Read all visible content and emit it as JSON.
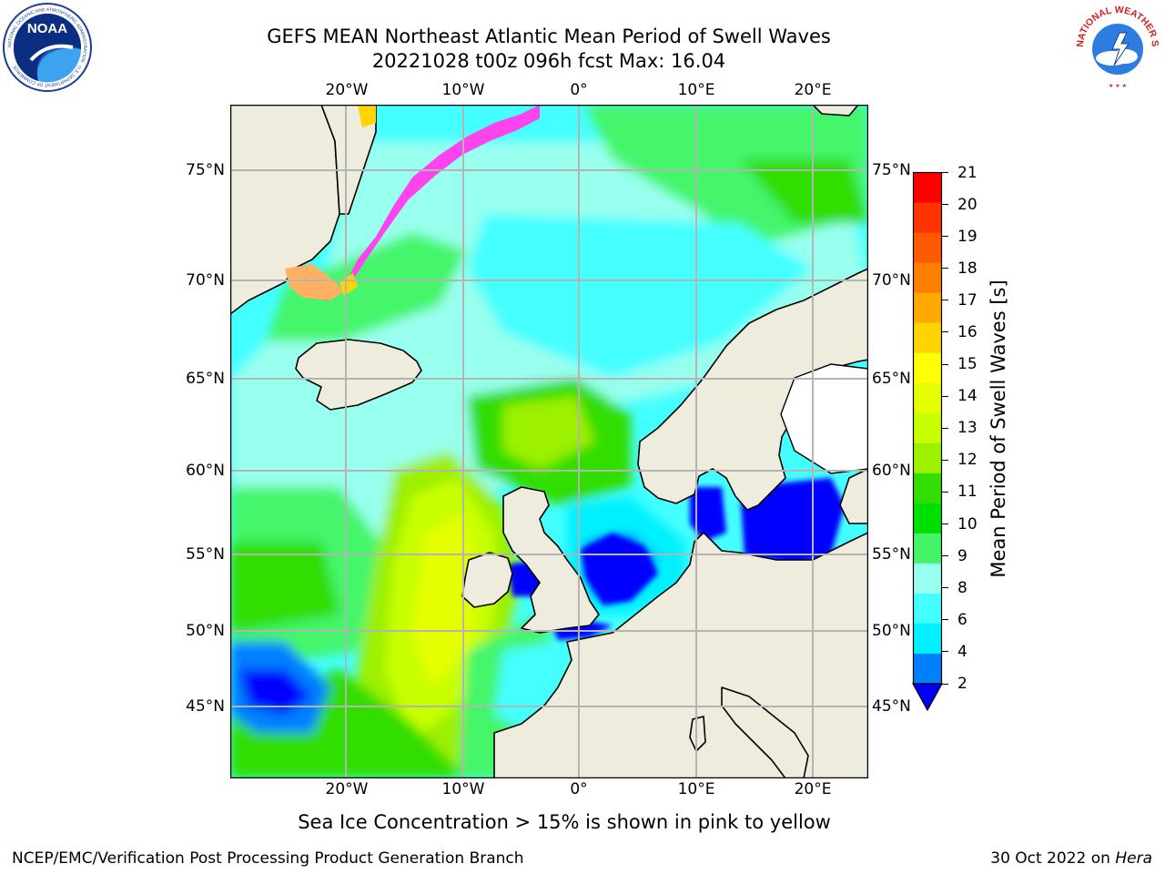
{
  "header": {
    "title_line1": "GEFS MEAN Northeast Atlantic Mean Period of Swell Waves",
    "title_line2": "20221028 t00z 096h fcst   Max: 16.04"
  },
  "logos": {
    "noaa_text": "NOAA",
    "noaa_ring_text": "NATIONAL OCEANIC AND ATMOSPHERIC ADMINISTRATION · U.S. DEPARTMENT OF COMMERCE",
    "nws_ring_text": "NATIONAL WEATHER SERVICE"
  },
  "map": {
    "lon_labels": [
      "20°W",
      "10°W",
      "0°",
      "10°E",
      "20°E"
    ],
    "lat_labels": [
      "75°N",
      "70°N",
      "65°N",
      "60°N",
      "55°N",
      "50°N",
      "45°N"
    ],
    "colors": {
      "land": "#eeecdc",
      "coast": "#000000",
      "grid": "#b4b4b4",
      "ice": "#ffffff"
    }
  },
  "colorbar": {
    "label": "Mean Period of Swell Waves [s]",
    "ticks": [
      "21",
      "20",
      "19",
      "18",
      "17",
      "16",
      "15",
      "14",
      "13",
      "12",
      "11",
      "10",
      "9",
      "8",
      "6",
      "4",
      "2"
    ],
    "colors_top_to_bottom": [
      "#ff0000",
      "#ff3300",
      "#ff5a00",
      "#ff8000",
      "#ffaa00",
      "#ffd400",
      "#ffff00",
      "#e6ff00",
      "#c8ff00",
      "#9cf000",
      "#33dd00",
      "#00e000",
      "#44f56a",
      "#99ffee",
      "#44ffff",
      "#00f0ff",
      "#0080ff"
    ],
    "under_color": "#0000ff"
  },
  "caption": "Sea Ice Concentration > 15% is shown in pink to yellow",
  "footer": {
    "left": "NCEP/EMC/Verification Post Processing Product Generation Branch",
    "right_date": "30 Oct 2022 on ",
    "right_host": "Hera"
  }
}
